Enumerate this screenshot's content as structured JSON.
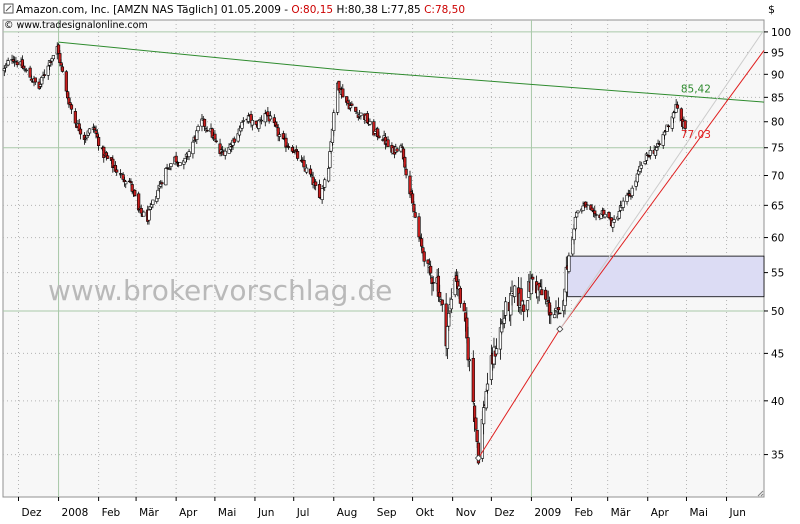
{
  "header": {
    "title_line": "Amazon.com, Inc. [AMZN NAS  Täglich] 01.05.2009 - ",
    "ohlc_o": "O:80,15",
    "ohlc_h": "H:80,38",
    "ohlc_l": "L:77,85",
    "ohlc_c": "C:78,50",
    "credit": "© www.tradesignalonline.com",
    "currency": "$"
  },
  "watermark": "www.brokervorschlag.de",
  "colors": {
    "background": "#f7f7f7",
    "candle_up": "#ffffff",
    "candle_down": "#c81e1e",
    "candle_edge": "#000000",
    "resistance_line": "#2e8b2e",
    "support_line": "#e02020",
    "box_fill": "#dcdcf4",
    "box_edge": "#000000",
    "grid": "#b4b4b4"
  },
  "chart_data": {
    "type": "candlestick",
    "y_scale": "log",
    "ylim": [
      31.5,
      103
    ],
    "y_ticks": [
      35,
      40,
      45,
      50,
      55,
      60,
      65,
      70,
      75,
      80,
      85,
      90,
      95,
      100
    ],
    "x_ticks": [
      "Dez",
      "2008",
      "Feb",
      "Mär",
      "Apr",
      "Mai",
      "Jun",
      "Jul",
      "Aug",
      "Sep",
      "Okt",
      "Nov",
      "Dez",
      "2009",
      "Feb",
      "Mär",
      "Apr",
      "Mai",
      "Jun"
    ],
    "x_tick_dates": [
      "2007-12-01",
      "2008-01-01",
      "2008-02-01",
      "2008-03-01",
      "2008-04-01",
      "2008-05-01",
      "2008-06-01",
      "2008-07-01",
      "2008-08-01",
      "2008-09-01",
      "2008-10-01",
      "2008-11-01",
      "2008-12-01",
      "2009-01-01",
      "2009-02-01",
      "2009-03-01",
      "2009-04-01",
      "2009-05-01",
      "2009-06-01"
    ],
    "x_range": [
      "2007-11-19",
      "2009-06-30"
    ],
    "last_bar": {
      "date": "2009-05-01",
      "open": 80.15,
      "high": 80.38,
      "low": 77.85,
      "close": 78.5
    },
    "close_path": [
      [
        "2007-11-20",
        91.0
      ],
      [
        "2007-11-26",
        94.0
      ],
      [
        "2007-12-03",
        92.0
      ],
      [
        "2007-12-10",
        89.5
      ],
      [
        "2007-12-17",
        87.0
      ],
      [
        "2007-12-24",
        92.5
      ],
      [
        "2007-12-31",
        96.0
      ],
      [
        "2008-01-07",
        86.0
      ],
      [
        "2008-01-14",
        80.0
      ],
      [
        "2008-01-21",
        77.0
      ],
      [
        "2008-01-28",
        79.0
      ],
      [
        "2008-02-04",
        74.0
      ],
      [
        "2008-02-11",
        72.0
      ],
      [
        "2008-02-18",
        70.0
      ],
      [
        "2008-02-25",
        69.0
      ],
      [
        "2008-03-03",
        64.0
      ],
      [
        "2008-03-10",
        63.0
      ],
      [
        "2008-03-17",
        67.0
      ],
      [
        "2008-03-24",
        71.0
      ],
      [
        "2008-03-31",
        73.0
      ],
      [
        "2008-04-07",
        72.0
      ],
      [
        "2008-04-14",
        76.0
      ],
      [
        "2008-04-21",
        80.0
      ],
      [
        "2008-04-28",
        78.0
      ],
      [
        "2008-05-05",
        74.0
      ],
      [
        "2008-05-12",
        75.0
      ],
      [
        "2008-05-19",
        78.0
      ],
      [
        "2008-05-26",
        81.0
      ],
      [
        "2008-06-02",
        79.0
      ],
      [
        "2008-06-09",
        82.0
      ],
      [
        "2008-06-16",
        79.0
      ],
      [
        "2008-06-23",
        76.0
      ],
      [
        "2008-06-30",
        75.0
      ],
      [
        "2008-07-07",
        72.0
      ],
      [
        "2008-07-14",
        70.0
      ],
      [
        "2008-07-21",
        66.0
      ],
      [
        "2008-07-28",
        72.0
      ],
      [
        "2008-08-04",
        88.0
      ],
      [
        "2008-08-11",
        84.0
      ],
      [
        "2008-08-18",
        82.0
      ],
      [
        "2008-08-25",
        81.0
      ],
      [
        "2008-09-01",
        78.0
      ],
      [
        "2008-09-08",
        77.0
      ],
      [
        "2008-09-15",
        74.0
      ],
      [
        "2008-09-22",
        76.0
      ],
      [
        "2008-09-29",
        67.0
      ],
      [
        "2008-10-06",
        60.0
      ],
      [
        "2008-10-13",
        55.0
      ],
      [
        "2008-10-20",
        54.0
      ],
      [
        "2008-10-27",
        47.0
      ],
      [
        "2008-11-03",
        55.0
      ],
      [
        "2008-11-10",
        49.0
      ],
      [
        "2008-11-17",
        40.0
      ],
      [
        "2008-11-21",
        35.0
      ],
      [
        "2008-11-28",
        42.0
      ],
      [
        "2008-12-05",
        46.0
      ],
      [
        "2008-12-12",
        50.0
      ],
      [
        "2008-12-19",
        52.0
      ],
      [
        "2008-12-26",
        51.0
      ],
      [
        "2009-01-02",
        54.0
      ],
      [
        "2009-01-09",
        52.0
      ],
      [
        "2009-01-16",
        50.0
      ],
      [
        "2009-01-23",
        49.0
      ],
      [
        "2009-01-29",
        56.0
      ],
      [
        "2009-02-05",
        64.0
      ],
      [
        "2009-02-12",
        65.0
      ],
      [
        "2009-02-19",
        63.0
      ],
      [
        "2009-02-26",
        64.0
      ],
      [
        "2009-03-05",
        62.0
      ],
      [
        "2009-03-12",
        65.0
      ],
      [
        "2009-03-19",
        67.0
      ],
      [
        "2009-03-26",
        71.0
      ],
      [
        "2009-04-02",
        74.0
      ],
      [
        "2009-04-09",
        75.0
      ],
      [
        "2009-04-16",
        79.0
      ],
      [
        "2009-04-23",
        83.0
      ],
      [
        "2009-04-27",
        80.0
      ],
      [
        "2009-05-01",
        78.5
      ]
    ],
    "lines": [
      {
        "role": "resistance",
        "points": [
          [
            "2008-01-01",
            97.5
          ],
          [
            "2008-08-07",
            91.0
          ],
          [
            "2009-04-22",
            85.42
          ],
          [
            "2009-06-30",
            84.0
          ]
        ]
      },
      {
        "role": "support",
        "points": [
          [
            "2008-11-21",
            34.7
          ],
          [
            "2009-01-23",
            47.8
          ],
          [
            "2009-06-30",
            95.5
          ]
        ]
      },
      {
        "role": "support-thin",
        "points": [
          [
            "2009-01-23",
            47.8
          ],
          [
            "2009-06-30",
            100.5
          ]
        ]
      }
    ],
    "annotations": [
      {
        "label": "85,42",
        "date": "2009-04-22",
        "value": 85.42
      },
      {
        "label": "77,03",
        "date": "2009-04-22",
        "value": 77.03
      }
    ],
    "zone": {
      "date_from": "2009-01-29",
      "date_to": "2009-06-30",
      "low": 51.8,
      "high": 57.3
    }
  }
}
